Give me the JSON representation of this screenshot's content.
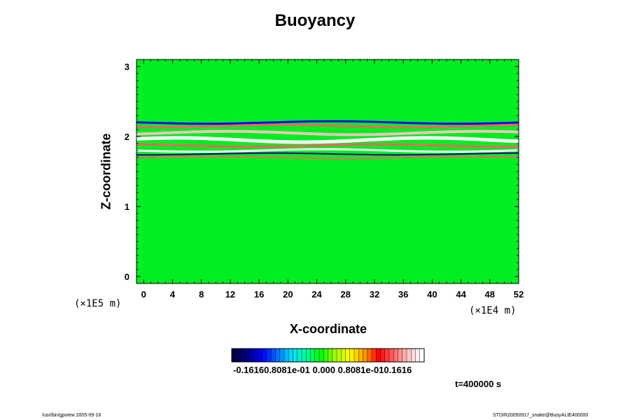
{
  "chart_data": {
    "type": "heatmap",
    "title": "Buoyancy",
    "xlabel": "X-coordinate",
    "ylabel": "Z-coordinate",
    "x_unit": "(×1E4 m)",
    "y_unit": "(×1E5 m)",
    "xlim": [
      -1,
      52
    ],
    "ylim": [
      -0.1,
      3.1
    ],
    "x_ticks": [
      "0",
      "4",
      "8",
      "12",
      "16",
      "20",
      "24",
      "28",
      "32",
      "36",
      "40",
      "44",
      "48",
      "52"
    ],
    "y_ticks": [
      "0",
      "1",
      "2",
      "3"
    ],
    "colorbar_labels": "-0.16160.8081e-01 0.000 0.8081e-010.1616",
    "colorbar_range": [
      -0.1616,
      0.1616
    ],
    "colors": [
      "#000040",
      "#000090",
      "#0000ff",
      "#0070ff",
      "#00e0ff",
      "#00ffa0",
      "#00ff00",
      "#a0ff00",
      "#ffff00",
      "#ffa000",
      "#ff0000",
      "#ff6060",
      "#ffc0c0",
      "#ffffff"
    ],
    "background_color": "#00ee22",
    "bands": [
      {
        "z": 2.2,
        "value": -0.12,
        "thickness": 0.03
      },
      {
        "z": 2.15,
        "value": 0.1,
        "thickness": 0.03
      },
      {
        "z": 2.05,
        "value": 0.14,
        "thickness": 0.04
      },
      {
        "z": 1.95,
        "value": 0.16,
        "thickness": 0.05
      },
      {
        "z": 1.87,
        "value": 0.1,
        "thickness": 0.03
      },
      {
        "z": 1.8,
        "value": 0.16,
        "thickness": 0.03
      },
      {
        "z": 1.75,
        "value": -0.14,
        "thickness": 0.02
      },
      {
        "z": 1.7,
        "value": 0.1,
        "thickness": 0.02
      }
    ],
    "time_label": "t=400000 s"
  },
  "footer": {
    "left": "/usr/bin/gpview 2005-09-16",
    "right": "STDIR20050917_snake@BuoyALtE400000"
  }
}
